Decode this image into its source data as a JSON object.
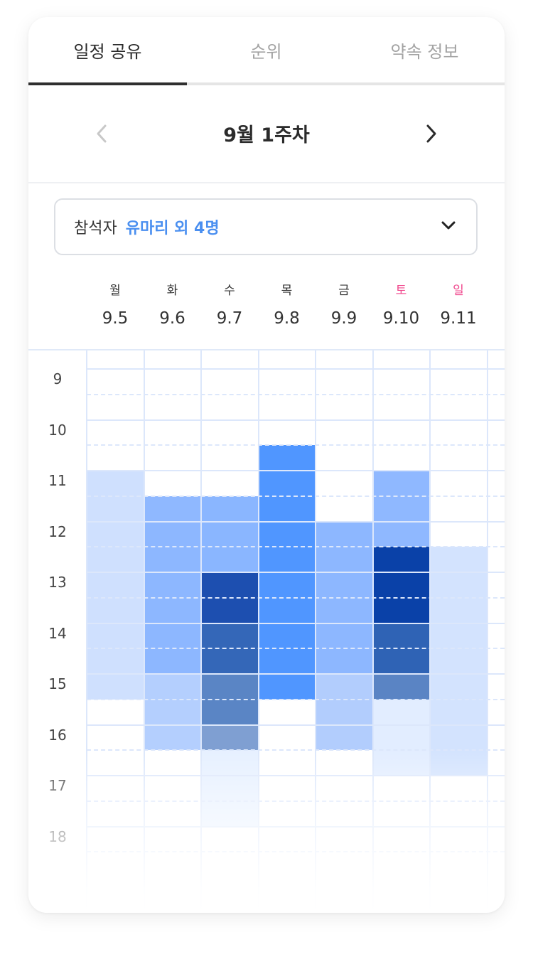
{
  "tabs": [
    {
      "label": "일정 공유",
      "active": true
    },
    {
      "label": "순위",
      "active": false
    },
    {
      "label": "약속 정보",
      "active": false
    }
  ],
  "week_nav": {
    "title": "9월 1주차",
    "prev_icon": "chevron-left-icon",
    "next_icon": "chevron-right-icon"
  },
  "attendees": {
    "label": "참석자",
    "value": "유마리 외 4명",
    "icon": "chevron-down-icon"
  },
  "days": [
    {
      "name": "월",
      "date": "9.5",
      "weekend": false
    },
    {
      "name": "화",
      "date": "9.6",
      "weekend": false
    },
    {
      "name": "수",
      "date": "9.7",
      "weekend": false
    },
    {
      "name": "목",
      "date": "9.8",
      "weekend": false
    },
    {
      "name": "금",
      "date": "9.9",
      "weekend": false
    },
    {
      "name": "토",
      "date": "9.10",
      "weekend": true
    },
    {
      "name": "일",
      "date": "9.11",
      "weekend": true
    }
  ],
  "hours": [
    "9",
    "10",
    "11",
    "12",
    "13",
    "14",
    "15",
    "16",
    "17",
    "18"
  ],
  "colors": {
    "accent": "#4a8ff0",
    "weekend": "#f0468c",
    "light": "#d1e2fe",
    "mid": "#8db8ff",
    "bright": "#5095ff",
    "dark": "#0a3fa6"
  },
  "availability": [
    {
      "day": "9.5",
      "segments": [
        {
          "start": 11,
          "end": 15.5,
          "color": "#cfe0fe"
        }
      ]
    },
    {
      "day": "9.6",
      "segments": [
        {
          "start": 11.5,
          "end": 12,
          "color": "#8fb8ff"
        },
        {
          "start": 12,
          "end": 15,
          "color": "#8db7ff"
        },
        {
          "start": 15,
          "end": 16.5,
          "color": "#b4cffe"
        }
      ]
    },
    {
      "day": "9.7",
      "segments": [
        {
          "start": 11.5,
          "end": 13,
          "color": "#8ab6ff"
        },
        {
          "start": 13,
          "end": 14,
          "color": "#1d4fb0"
        },
        {
          "start": 14,
          "end": 15,
          "color": "#3467b8"
        },
        {
          "start": 15,
          "end": 16,
          "color": "#5a85c5"
        },
        {
          "start": 16,
          "end": 16.5,
          "color": "#7f9fd2"
        },
        {
          "start": 16.5,
          "end": 18,
          "color": "#e6f0ff"
        }
      ]
    },
    {
      "day": "9.8",
      "segments": [
        {
          "start": 10.5,
          "end": 15.5,
          "color": "#5096ff"
        }
      ]
    },
    {
      "day": "9.9",
      "segments": [
        {
          "start": 12,
          "end": 15,
          "color": "#8db7ff"
        },
        {
          "start": 15,
          "end": 16.5,
          "color": "#b2cdfd"
        }
      ]
    },
    {
      "day": "9.10",
      "segments": [
        {
          "start": 11,
          "end": 12.5,
          "color": "#8fb8ff"
        },
        {
          "start": 12.5,
          "end": 14,
          "color": "#0a41a8"
        },
        {
          "start": 14,
          "end": 15,
          "color": "#2f63b5"
        },
        {
          "start": 15,
          "end": 15.5,
          "color": "#5a84c4"
        },
        {
          "start": 15.5,
          "end": 17,
          "color": "#e2edff"
        }
      ]
    },
    {
      "day": "9.11",
      "segments": [
        {
          "start": 12.5,
          "end": 17,
          "color": "#d3e3fe"
        }
      ]
    }
  ]
}
